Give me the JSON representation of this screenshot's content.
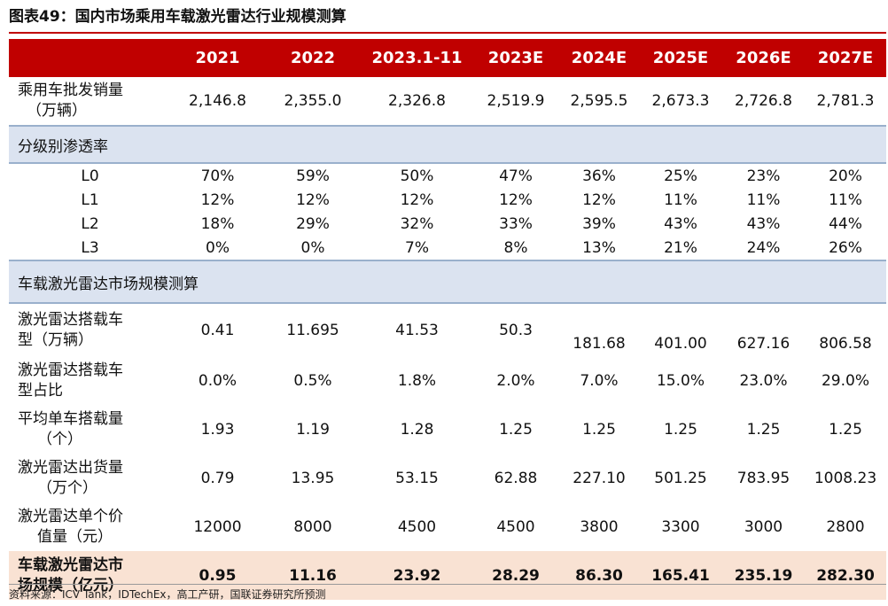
{
  "title": "图表49：国内市场乘用车载激光雷达行业规模测算",
  "headers": [
    "",
    "2021",
    "2022",
    "2023.1-11",
    "2023E",
    "2024E",
    "2025E",
    "2026E",
    "2027E"
  ],
  "rows": {
    "sales": {
      "label_1": "乘用车批发销量",
      "label_2": "（万辆）",
      "values": [
        "2,146.8",
        "2,355.0",
        "2,326.8",
        "2,519.9",
        "2,595.5",
        "2,673.3",
        "2,726.8",
        "2,781.3"
      ]
    },
    "section1": "分级别渗透率",
    "l0": {
      "label": "L0",
      "values": [
        "70%",
        "59%",
        "50%",
        "47%",
        "36%",
        "25%",
        "23%",
        "20%"
      ]
    },
    "l1": {
      "label": "L1",
      "values": [
        "12%",
        "12%",
        "12%",
        "12%",
        "12%",
        "11%",
        "11%",
        "11%"
      ]
    },
    "l2": {
      "label": "L2",
      "values": [
        "18%",
        "29%",
        "32%",
        "33%",
        "39%",
        "43%",
        "43%",
        "44%"
      ]
    },
    "l3": {
      "label": "L3",
      "values": [
        "0%",
        "0%",
        "7%",
        "8%",
        "13%",
        "21%",
        "24%",
        "26%"
      ]
    },
    "section2": "车载激光雷达市场规模测算",
    "models": {
      "label_1": "激光雷达搭载车",
      "label_2": "型（万辆）",
      "values": [
        "0.41",
        "11.695",
        "41.53",
        "50.3",
        "181.68",
        "401.00",
        "627.16",
        "806.58"
      ]
    },
    "ratio": {
      "label_1": "激光雷达搭载车",
      "label_2": "型占比",
      "values": [
        "0.0%",
        "0.5%",
        "1.8%",
        "2.0%",
        "7.0%",
        "15.0%",
        "23.0%",
        "29.0%"
      ]
    },
    "avg": {
      "label_1": "平均单车搭载量",
      "label_2": "（个）",
      "values": [
        "1.93",
        "1.19",
        "1.28",
        "1.25",
        "1.25",
        "1.25",
        "1.25",
        "1.25"
      ]
    },
    "shipments": {
      "label_1": "激光雷达出货量",
      "label_2": "（万个）",
      "values": [
        "0.79",
        "13.95",
        "53.15",
        "62.88",
        "227.10",
        "501.25",
        "783.95",
        "1008.23"
      ]
    },
    "price": {
      "label_1": "激光雷达单个价",
      "label_2": "值量（元）",
      "values": [
        "12000",
        "8000",
        "4500",
        "4500",
        "3800",
        "3300",
        "3000",
        "2800"
      ]
    },
    "market": {
      "label_1": "车载激光雷达市",
      "label_2": "场规模（亿元）",
      "values": [
        "0.95",
        "11.16",
        "23.92",
        "28.29",
        "86.30",
        "165.41",
        "235.19",
        "282.30"
      ]
    }
  },
  "source": "资料来源：ICV Tank，IDTechEx，高工产研，国联证券研究所预测"
}
